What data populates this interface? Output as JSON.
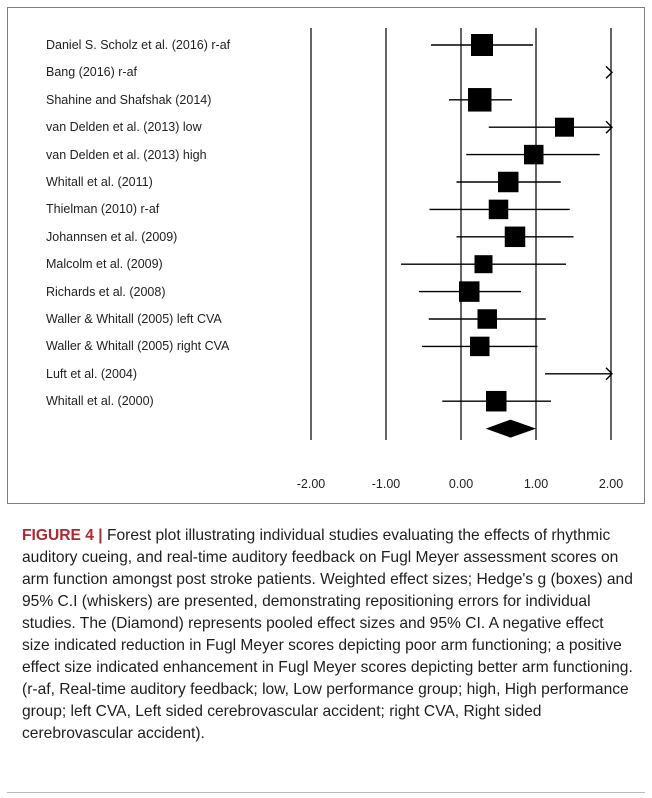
{
  "chart_data": {
    "type": "forest",
    "xlim": [
      -2.0,
      2.0
    ],
    "ticks": [
      -2.0,
      -1.0,
      0.0,
      1.0,
      2.0
    ],
    "tick_labels": [
      "-2.00",
      "-1.00",
      "0.00",
      "1.00",
      "2.00"
    ],
    "studies": [
      {
        "label": "Daniel S. Scholz et al. (2016) r-af",
        "effect": 0.28,
        "lower": -0.4,
        "upper": 0.96,
        "weight": 1.0
      },
      {
        "label": "Bang (2016) r-af",
        "effect": 2.8,
        "lower": 2.0,
        "upper": 3.6,
        "weight": 1.0
      },
      {
        "label": "Shahine and Shafshak (2014)",
        "effect": 0.25,
        "lower": -0.16,
        "upper": 0.68,
        "weight": 1.15
      },
      {
        "label": "van Delden et al. (2013) low",
        "effect": 1.38,
        "lower": 0.37,
        "upper": 2.4,
        "weight": 0.7
      },
      {
        "label": "van Delden et al. (2013) high",
        "effect": 0.97,
        "lower": 0.07,
        "upper": 1.85,
        "weight": 0.75
      },
      {
        "label": "Whitall et al. (2011)",
        "effect": 0.63,
        "lower": -0.06,
        "upper": 1.33,
        "weight": 0.85
      },
      {
        "label": "Thielman (2010) r-af",
        "effect": 0.5,
        "lower": -0.42,
        "upper": 1.45,
        "weight": 0.75
      },
      {
        "label": "Johannsen et al. (2009)",
        "effect": 0.72,
        "lower": -0.06,
        "upper": 1.5,
        "weight": 0.85
      },
      {
        "label": "Malcolm et al. (2009)",
        "effect": 0.3,
        "lower": -0.8,
        "upper": 1.4,
        "weight": 0.6
      },
      {
        "label": "Richards et al. (2008)",
        "effect": 0.11,
        "lower": -0.56,
        "upper": 0.8,
        "weight": 0.85
      },
      {
        "label": "Waller & Whitall (2005) left CVA",
        "effect": 0.35,
        "lower": -0.43,
        "upper": 1.13,
        "weight": 0.75
      },
      {
        "label": "Waller & Whitall (2005) right CVA",
        "effect": 0.25,
        "lower": -0.52,
        "upper": 1.02,
        "weight": 0.75
      },
      {
        "label": "Luft et al. (2004)",
        "effect": 2.6,
        "lower": 1.12,
        "upper": 4.1,
        "weight": 0.8
      },
      {
        "label": "Whitall et al. (2000)",
        "effect": 0.47,
        "lower": -0.25,
        "upper": 1.2,
        "weight": 0.85
      }
    ],
    "pooled": {
      "effect": 0.66,
      "lower": 0.33,
      "upper": 1.0
    }
  },
  "caption": {
    "figure_label": "FIGURE 4",
    "separator": "|",
    "text": "Forest plot illustrating individual studies evaluating the effects of rhythmic auditory cueing, and real-time auditory feedback on Fugl Meyer assessment scores on arm function amongst post stroke patients. Weighted effect sizes; Hedge's g (boxes) and 95% C.I (whiskers) are presented, demonstrating repositioning errors for individual studies. The (Diamond) represents pooled effect sizes and 95% CI. A negative effect size indicated reduction in Fugl Meyer scores depicting poor arm functioning; a positive effect size indicated enhancement in Fugl Meyer scores depicting better arm functioning. (r-af, Real-time auditory feedback; low, Low performance group; high, High performance group; left CVA, Left sided cerebrovascular accident; right CVA, Right sided cerebrovascular accident)."
  }
}
